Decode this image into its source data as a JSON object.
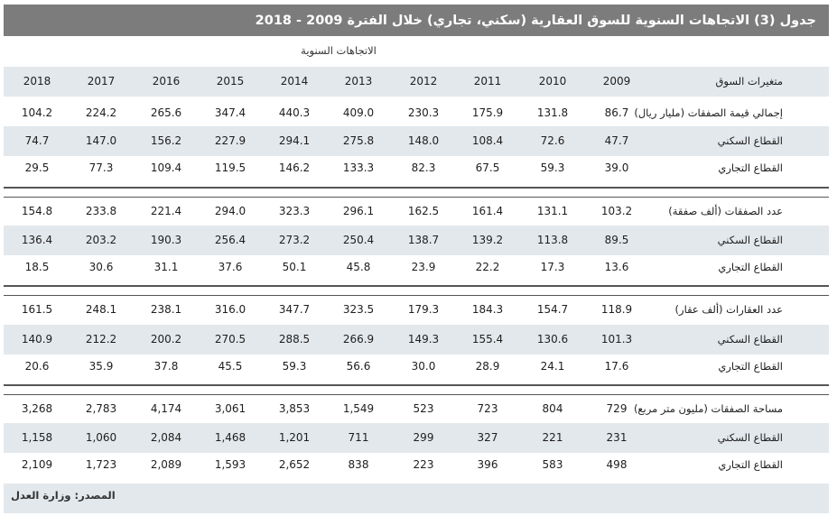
{
  "title": "جدول (3) الاتجاهات السنوية للسوق العقارية (سكني، تجاري) خلال الفترة 2009 - 2018",
  "super_header": "الاتجاهات السنوية",
  "variables_label": "متغيرات السوق",
  "years": [
    "2009",
    "2010",
    "2011",
    "2012",
    "2013",
    "2014",
    "2015",
    "2016",
    "2017",
    "2018"
  ],
  "groups": [
    {
      "rows": [
        {
          "label": "إجمالي قيمة الصفقات (مليار ريال)",
          "values": [
            "86.7",
            "131.8",
            "175.9",
            "230.3",
            "409.0",
            "440.3",
            "347.4",
            "265.6",
            "224.2",
            "104.2"
          ]
        },
        {
          "label": "القطاع السكني",
          "values": [
            "47.7",
            "72.6",
            "108.4",
            "148.0",
            "275.8",
            "294.1",
            "227.9",
            "156.2",
            "147.0",
            "74.7"
          ]
        },
        {
          "label": "القطاع التجاري",
          "values": [
            "39.0",
            "59.3",
            "67.5",
            "82.3",
            "133.3",
            "146.2",
            "119.5",
            "109.4",
            "77.3",
            "29.5"
          ]
        }
      ]
    },
    {
      "rows": [
        {
          "label": "عدد الصفقات (ألف صفقة)",
          "values": [
            "103.2",
            "131.1",
            "161.4",
            "162.5",
            "296.1",
            "323.3",
            "294.0",
            "221.4",
            "233.8",
            "154.8"
          ]
        },
        {
          "label": "القطاع السكني",
          "values": [
            "89.5",
            "113.8",
            "139.2",
            "138.7",
            "250.4",
            "273.2",
            "256.4",
            "190.3",
            "203.2",
            "136.4"
          ]
        },
        {
          "label": "القطاع التجاري",
          "values": [
            "13.6",
            "17.3",
            "22.2",
            "23.9",
            "45.8",
            "50.1",
            "37.6",
            "31.1",
            "30.6",
            "18.5"
          ]
        }
      ]
    },
    {
      "rows": [
        {
          "label": "عدد العقارات (ألف عقار)",
          "values": [
            "118.9",
            "154.7",
            "184.3",
            "179.3",
            "323.5",
            "347.7",
            "316.0",
            "238.1",
            "248.1",
            "161.5"
          ]
        },
        {
          "label": "القطاع السكني",
          "values": [
            "101.3",
            "130.6",
            "155.4",
            "149.3",
            "266.9",
            "288.5",
            "270.5",
            "200.2",
            "212.2",
            "140.9"
          ]
        },
        {
          "label": "القطاع التجاري",
          "values": [
            "17.6",
            "24.1",
            "28.9",
            "30.0",
            "56.6",
            "59.3",
            "45.5",
            "37.8",
            "35.9",
            "20.6"
          ]
        }
      ]
    },
    {
      "rows": [
        {
          "label": "مساحة الصفقات (مليون متر مربع)",
          "values": [
            "729",
            "804",
            "723",
            "523",
            "1,549",
            "3,853",
            "3,061",
            "4,174",
            "2,783",
            "3,268"
          ]
        },
        {
          "label": "القطاع السكني",
          "values": [
            "231",
            "221",
            "327",
            "299",
            "711",
            "1,201",
            "1,468",
            "2,084",
            "1,060",
            "1,158"
          ]
        },
        {
          "label": "القطاع التجاري",
          "values": [
            "498",
            "583",
            "396",
            "223",
            "838",
            "2,652",
            "1,593",
            "2,089",
            "1,723",
            "2,109"
          ]
        }
      ]
    }
  ],
  "source": "المصدر: وزارة العدل",
  "colors": {
    "title_bg": "#7c7c7c",
    "band_bg": "#e3e8ec",
    "separator": "#555555"
  }
}
